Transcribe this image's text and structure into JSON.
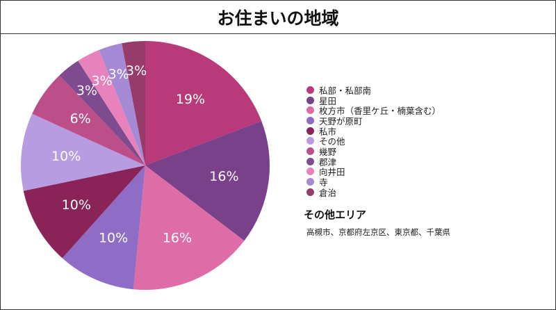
{
  "chart_data": {
    "type": "pie",
    "title": "お住まいの地域",
    "categories": [
      "私部・私部南",
      "星田",
      "枚方市（香里ケ丘・楠葉含む）",
      "天野が原町",
      "私市",
      "その他",
      "幾野",
      "郡津",
      "向井田",
      "寺",
      "倉治"
    ],
    "values": [
      19,
      16,
      16,
      10,
      10,
      10,
      6,
      3,
      3,
      3,
      3
    ],
    "labels": [
      "19%",
      "16%",
      "16%",
      "10%",
      "10%",
      "10%",
      "6%",
      "3%",
      "3%",
      "3%",
      "3%"
    ],
    "colors": [
      "#B83A7B",
      "#7A418B",
      "#DE6CA6",
      "#8F6DC6",
      "#8A2458",
      "#B89CE2",
      "#BC4F8A",
      "#7E4B8E",
      "#E882BC",
      "#A689D4",
      "#973C6A"
    ],
    "legend_position": "right"
  },
  "other_area": {
    "title": "その他エリア",
    "text": "高槻市、京都府左京区、東京都、千葉県"
  }
}
